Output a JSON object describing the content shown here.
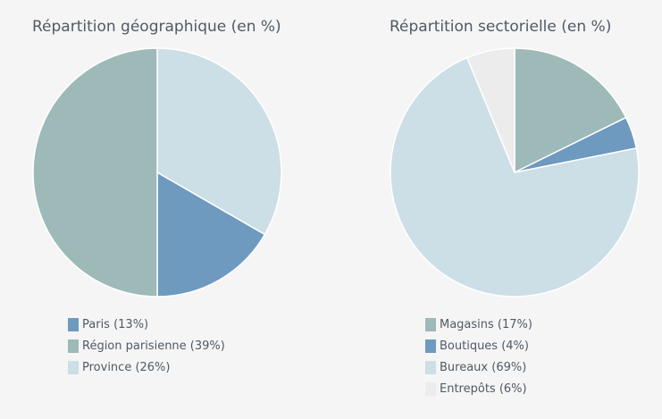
{
  "chart_data": [
    {
      "type": "pie",
      "title": "Répartition géographique (en %)",
      "slices": [
        {
          "label": "Paris (13%)",
          "value": 13,
          "color": "#6e9abf"
        },
        {
          "label": "Région parisienne (39%)",
          "value": 39,
          "color": "#9dbab8"
        },
        {
          "label": "Province (26%)",
          "value": 26,
          "color": "#ccdee6"
        }
      ],
      "legend_position": "bottom-left"
    },
    {
      "type": "pie",
      "title": "Répartition sectorielle (en %)",
      "slices": [
        {
          "label": "Magasins (17%)",
          "value": 17,
          "color": "#9dbab8"
        },
        {
          "label": "Boutiques (4%)",
          "value": 4,
          "color": "#6e9abf"
        },
        {
          "label": "Bureaux (69%)",
          "value": 69,
          "color": "#ccdee6"
        },
        {
          "label": "Entrepôts (6%)",
          "value": 6,
          "color": "#ececec"
        }
      ],
      "legend_position": "bottom-left"
    }
  ]
}
